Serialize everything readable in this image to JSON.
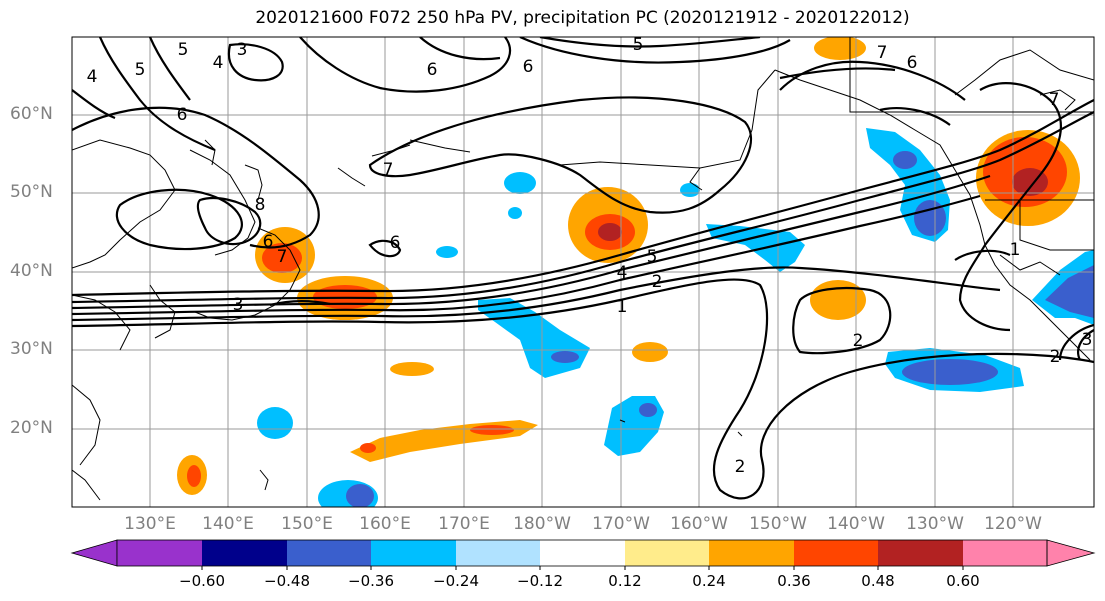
{
  "title": "2020121600 F072 250 hPa PV, precipitation PC (2020121912 - 2020122012)",
  "lat_labels": [
    "60°N",
    "50°N",
    "40°N",
    "30°N",
    "20°N"
  ],
  "lon_labels": [
    "130°E",
    "140°E",
    "150°E",
    "160°E",
    "170°E",
    "180°W",
    "170°W",
    "160°W",
    "150°W",
    "140°W",
    "130°W",
    "120°W"
  ],
  "colorbar": {
    "ticks": [
      "−0.60",
      "−0.48",
      "−0.36",
      "−0.24",
      "−0.12",
      "0.12",
      "0.24",
      "0.36",
      "0.48",
      "0.60"
    ],
    "colors": [
      "#9932cc",
      "#00008b",
      "#3a5fcd",
      "#00bfff",
      "#b0e2ff",
      "#ffffff",
      "#ffec8b",
      "#ffa500",
      "#ff4500",
      "#b22222",
      "#ff82ab"
    ]
  },
  "contour_labels": [
    "5",
    "5",
    "4",
    "3",
    "4",
    "6",
    "6",
    "6",
    "5",
    "7",
    "6",
    "7",
    "6",
    "8",
    "7",
    "6",
    "5",
    "4",
    "2",
    "1",
    "7",
    "3",
    "2",
    "2",
    "1",
    "2",
    "3"
  ]
}
